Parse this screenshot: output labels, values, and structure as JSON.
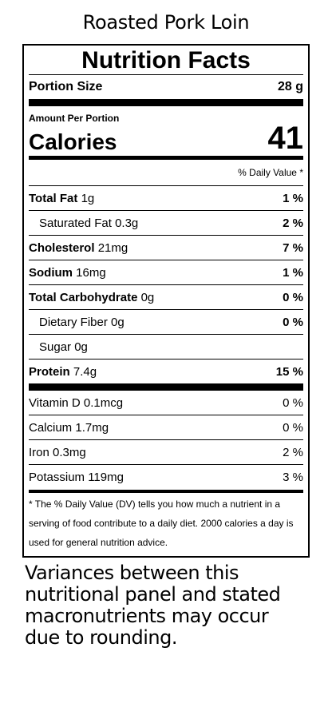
{
  "title": "Roasted Pork Loin",
  "label": {
    "heading": "Nutrition Facts",
    "portion": {
      "label": "Portion Size",
      "value": "28 g"
    },
    "amount_per_portion": "Amount Per Portion",
    "calories": {
      "label": "Calories",
      "value": "41"
    },
    "dv_header": "% Daily Value *",
    "nutrients": [
      {
        "name": "Total Fat",
        "amount": "1g",
        "dv": "1 %",
        "bold": true,
        "indent": false
      },
      {
        "name": "Saturated Fat",
        "amount": "0.3g",
        "dv": "2 %",
        "bold": false,
        "indent": true
      },
      {
        "name": "Cholesterol",
        "amount": "21mg",
        "dv": "7 %",
        "bold": true,
        "indent": false
      },
      {
        "name": "Sodium",
        "amount": "16mg",
        "dv": "1 %",
        "bold": true,
        "indent": false
      },
      {
        "name": "Total Carbohydrate",
        "amount": "0g",
        "dv": "0 %",
        "bold": true,
        "indent": false
      },
      {
        "name": "Dietary Fiber",
        "amount": "0g",
        "dv": "0 %",
        "bold": false,
        "indent": true
      },
      {
        "name": "Sugar",
        "amount": "0g",
        "dv": null,
        "bold": false,
        "indent": true
      },
      {
        "name": "Protein",
        "amount": "7.4g",
        "dv": "15 %",
        "bold": true,
        "indent": false
      }
    ],
    "vitamins": [
      {
        "name": "Vitamin D",
        "amount": "0.1mcg",
        "dv": "0 %"
      },
      {
        "name": "Calcium",
        "amount": "1.7mg",
        "dv": "0 %"
      },
      {
        "name": "Iron",
        "amount": "0.3mg",
        "dv": "2 %"
      },
      {
        "name": "Potassium",
        "amount": "119mg",
        "dv": "3 %"
      }
    ],
    "footnote": "* The % Daily Value (DV) tells you how much a nutrient in a serving of food contribute to a daily diet. 2000 calories a day is used for general nutrition advice."
  },
  "disclaimer": "Variances between this nutritional panel and stated macronutrients may occur due to rounding."
}
